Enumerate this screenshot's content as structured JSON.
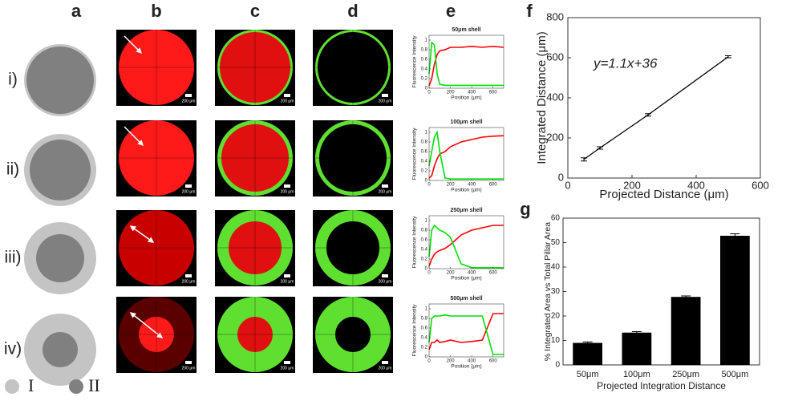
{
  "panel_labels": [
    "a",
    "b",
    "c",
    "d",
    "e",
    "f",
    "g"
  ],
  "row_labels": [
    "i)",
    "ii)",
    "iii)",
    "iv)"
  ],
  "legend": [
    "I",
    "II"
  ],
  "scale_bar_label": "200 μm",
  "chart_data": [
    {
      "type": "line",
      "title": "50μm shell",
      "x_label": "Position (μm)",
      "y_label": "Fluorescence Intensity",
      "x": [
        0,
        25,
        50,
        75,
        100,
        150,
        200,
        300,
        400,
        500,
        600,
        700
      ],
      "series": [
        {
          "name": "red",
          "color": "#ff0000",
          "values": [
            0.05,
            0.2,
            0.5,
            0.7,
            0.78,
            0.8,
            0.85,
            0.85,
            0.87,
            0.85,
            0.87,
            0.85
          ]
        },
        {
          "name": "green",
          "color": "#00e000",
          "values": [
            0.3,
            0.95,
            0.9,
            0.3,
            0.08,
            0.06,
            0.06,
            0.06,
            0.06,
            0.06,
            0.06,
            0.06
          ]
        }
      ],
      "xlim": [
        0,
        700
      ],
      "ylim": [
        0,
        1.1
      ],
      "xticks": [
        0,
        200,
        400,
        600
      ],
      "yticks": [
        0,
        0.2,
        0.4,
        0.6,
        0.8,
        1
      ]
    },
    {
      "type": "line",
      "title": "100μm shell",
      "x_label": "Position (μm)",
      "y_label": "Fluorescence Intensity",
      "x": [
        0,
        25,
        50,
        75,
        100,
        150,
        200,
        300,
        400,
        500,
        600,
        700
      ],
      "series": [
        {
          "name": "red",
          "color": "#ff0000",
          "values": [
            0.05,
            0.1,
            0.3,
            0.45,
            0.55,
            0.6,
            0.7,
            0.8,
            0.85,
            0.9,
            0.92,
            0.93
          ]
        },
        {
          "name": "green",
          "color": "#00e000",
          "values": [
            0.3,
            0.6,
            0.9,
            1.0,
            0.6,
            0.05,
            0.03,
            0.03,
            0.03,
            0.03,
            0.03,
            0.03
          ]
        }
      ],
      "xlim": [
        0,
        700
      ],
      "ylim": [
        0,
        1.1
      ],
      "xticks": [
        0,
        200,
        400,
        600
      ],
      "yticks": [
        0,
        0.2,
        0.4,
        0.6,
        0.8,
        1
      ]
    },
    {
      "type": "line",
      "title": "250μm shell",
      "x_label": "Position (μm)",
      "y_label": "Fluorescence Intensity",
      "x": [
        0,
        25,
        50,
        75,
        100,
        150,
        200,
        300,
        400,
        500,
        600,
        700
      ],
      "series": [
        {
          "name": "red",
          "color": "#ff0000",
          "values": [
            0.05,
            0.2,
            0.3,
            0.35,
            0.38,
            0.42,
            0.5,
            0.7,
            0.8,
            0.85,
            0.9,
            0.9
          ]
        },
        {
          "name": "green",
          "color": "#00e000",
          "values": [
            0.25,
            0.8,
            0.9,
            0.85,
            0.8,
            0.75,
            0.65,
            0.1,
            0.02,
            0.02,
            0.02,
            0.02
          ]
        }
      ],
      "xlim": [
        0,
        700
      ],
      "ylim": [
        0,
        1.1
      ],
      "xticks": [
        0,
        200,
        400,
        600
      ],
      "yticks": [
        0,
        0.2,
        0.4,
        0.6,
        0.8,
        1
      ]
    },
    {
      "type": "line",
      "title": "500μm shell",
      "x_label": "Position (μm)",
      "y_label": "Fluorescence Intensity",
      "x": [
        0,
        25,
        50,
        75,
        100,
        150,
        200,
        300,
        400,
        500,
        600,
        700
      ],
      "series": [
        {
          "name": "red",
          "color": "#ff0000",
          "values": [
            0.15,
            0.3,
            0.3,
            0.35,
            0.3,
            0.32,
            0.35,
            0.3,
            0.32,
            0.35,
            0.9,
            0.9
          ]
        },
        {
          "name": "green",
          "color": "#00e000",
          "values": [
            0.3,
            0.8,
            0.85,
            0.85,
            0.85,
            0.87,
            0.85,
            0.85,
            0.85,
            0.85,
            0.05,
            0.05
          ]
        }
      ],
      "xlim": [
        0,
        700
      ],
      "ylim": [
        0,
        1.1
      ],
      "xticks": [
        0,
        200,
        400,
        600
      ],
      "yticks": [
        0,
        0.2,
        0.4,
        0.6,
        0.8,
        1
      ]
    },
    {
      "type": "scatter",
      "x_label": "Projected Distance (μm)",
      "y_label": "Integrated Distance (μm)",
      "annotation": "y=1.1x+36",
      "x": [
        50,
        100,
        250,
        500
      ],
      "values": [
        93,
        150,
        315,
        605
      ],
      "errors": [
        8,
        6,
        6,
        5
      ],
      "color": "#000000",
      "xlim": [
        0,
        600
      ],
      "ylim": [
        0,
        800
      ],
      "xticks": [
        0,
        200,
        400,
        600
      ],
      "yticks": [
        0,
        200,
        400,
        600,
        800
      ]
    },
    {
      "type": "bar",
      "x_label": "Projected Integration Distance",
      "y_label": "% Integrated Area vs Total Pillar Area",
      "categories": [
        "50μm",
        "100μm",
        "250μm",
        "500μm"
      ],
      "values": [
        9,
        13.2,
        27.8,
        52.8
      ],
      "errors": [
        0.4,
        0.4,
        0.4,
        0.8
      ],
      "color": "#000000",
      "ylim": [
        0,
        60
      ],
      "yticks": [
        0,
        10,
        20,
        30,
        40,
        50,
        60
      ]
    }
  ]
}
